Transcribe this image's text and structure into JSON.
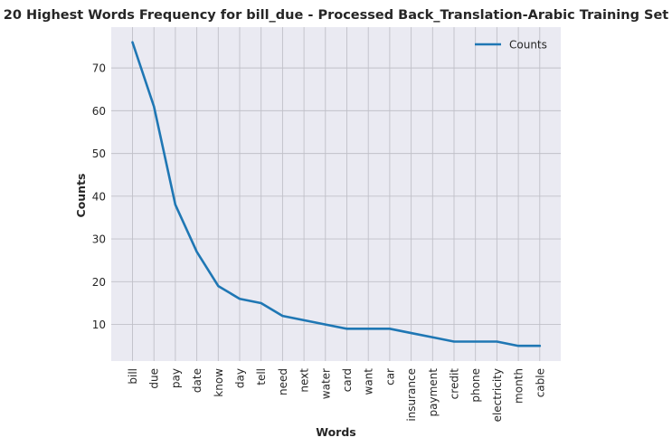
{
  "chart_data": {
    "type": "line",
    "title": "20 Highest Words Frequency for bill_due - Processed Back_Translation-Arabic Training Set",
    "xlabel": "Words",
    "ylabel": "Counts",
    "categories": [
      "bill",
      "due",
      "pay",
      "date",
      "know",
      "day",
      "tell",
      "need",
      "next",
      "water",
      "card",
      "want",
      "car",
      "insurance",
      "payment",
      "credit",
      "phone",
      "electricity",
      "month",
      "cable"
    ],
    "series": [
      {
        "name": "Counts",
        "values": [
          76,
          61,
          38,
          27,
          19,
          16,
          15,
          12,
          11,
          10,
          9,
          9,
          9,
          8,
          7,
          6,
          6,
          6,
          5,
          5
        ],
        "color": "#1f77b4"
      }
    ],
    "ylim": [
      1.45,
      79.55
    ],
    "yticks": [
      10,
      20,
      30,
      40,
      50,
      60,
      70
    ],
    "grid": true,
    "legend_position": "upper right",
    "background_color": "#eaeaf2",
    "grid_color": "#c0c0c8"
  }
}
